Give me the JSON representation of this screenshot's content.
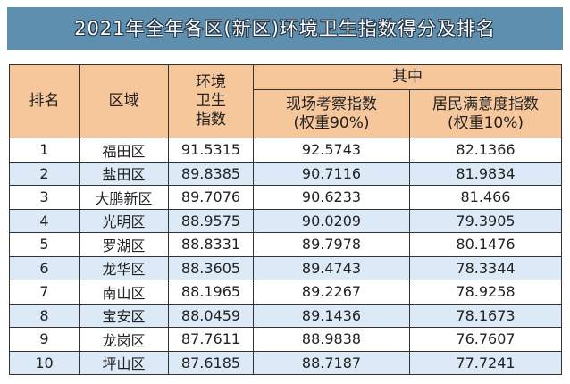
{
  "header": {
    "title": "2021年全年各区(新区)环境卫生指数得分及排名"
  },
  "table": {
    "headers": {
      "rank": "排名",
      "district": "区域",
      "index": [
        "环境",
        "卫生",
        "指数"
      ],
      "group": "其中",
      "onsite": [
        "现场考察指数",
        "(权重90%)"
      ],
      "resident": [
        "居民满意度指数",
        "(权重10%)"
      ]
    },
    "rows": [
      [
        1,
        "福田区",
        91.5315,
        92.5743,
        82.1366
      ],
      [
        2,
        "盐田区",
        89.8385,
        90.7116,
        81.9834
      ],
      [
        3,
        "大鹏新区",
        89.7076,
        90.6233,
        81.466
      ],
      [
        4,
        "光明区",
        88.9575,
        90.0209,
        79.3905
      ],
      [
        5,
        "罗湖区",
        88.8331,
        89.7978,
        80.1476
      ],
      [
        6,
        "龙华区",
        88.3605,
        89.4743,
        78.3344
      ],
      [
        7,
        "南山区",
        88.1965,
        89.2267,
        78.9258
      ],
      [
        8,
        "宝安区",
        88.0459,
        89.1436,
        78.1673
      ],
      [
        9,
        "龙岗区",
        87.7611,
        88.9838,
        76.7607
      ],
      [
        10,
        "坪山区",
        87.6185,
        88.7187,
        77.7241
      ]
    ]
  }
}
